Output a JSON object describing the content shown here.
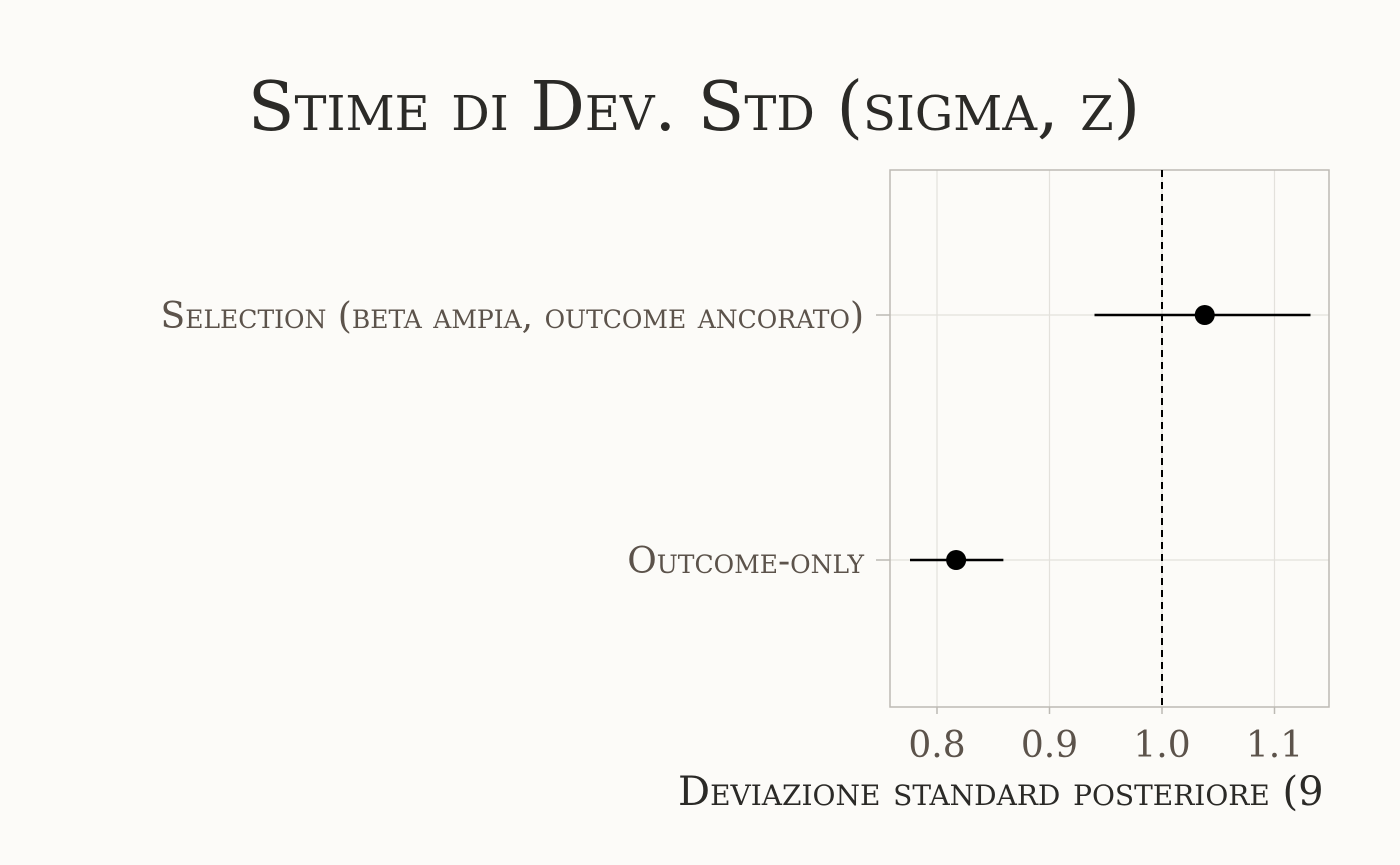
{
  "chart_data": {
    "type": "scatter",
    "subtype": "forest-plot",
    "title": "Stime di Dev. Std (sigma, z)",
    "xlabel": "Deviazione standard posteriore (9",
    "ylabel": "",
    "xlim": [
      0.76,
      1.15
    ],
    "x_ticks": [
      0.8,
      0.9,
      1.0,
      1.1
    ],
    "x_tick_labels": [
      "0.8",
      "0.9",
      "1.0",
      "1.1"
    ],
    "reference_line": {
      "x": 1.0,
      "style": "dashed"
    },
    "grid": true,
    "categories": [
      "Selection (beta ampia, outcome ancorato)",
      "Outcome-only"
    ],
    "points": [
      {
        "label": "Selection (beta ampia, outcome ancorato)",
        "estimate": 1.038,
        "lower": 0.94,
        "upper": 1.132
      },
      {
        "label": "Outcome-only",
        "estimate": 0.817,
        "lower": 0.776,
        "upper": 0.859
      }
    ],
    "colors": {
      "background": "#fcfbf8",
      "point": "#000000",
      "grid": "#e3e1dc",
      "frame": "#bdbab4",
      "title": "#2b2a27",
      "label": "#5c534b"
    }
  }
}
